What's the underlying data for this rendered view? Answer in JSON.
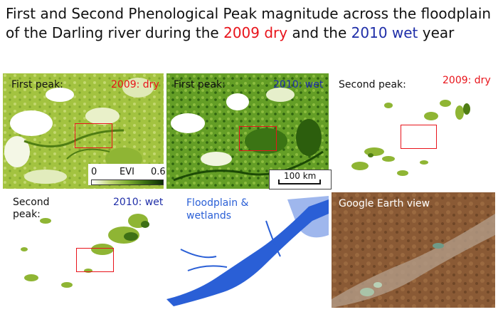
{
  "title": {
    "part1": "First and Second Phenological Peak magnitude across the floodplain of the Darling river during the ",
    "dry_year": "2009 dry",
    "part2": " and the ",
    "wet_year": "2010 wet",
    "part3": " year"
  },
  "panels": {
    "p1": {
      "label": "First peak:",
      "year": "2009: dry"
    },
    "p2": {
      "label": "First peak:",
      "year": "2010: wet"
    },
    "p3": {
      "label": "Second peak:",
      "year": "2009: dry"
    },
    "p4": {
      "label": "Second peak:",
      "year": "2010: wet"
    },
    "p5": {
      "label": "Floodplain & wetlands"
    },
    "p6": {
      "label": "Google Earth view"
    }
  },
  "colorbar": {
    "min": "0",
    "name": "EVI",
    "max": "0.6"
  },
  "scalebar": {
    "text": "100 km"
  },
  "colors": {
    "dry": "#e8141b",
    "wet": "#1f2ea8",
    "floodplain": "#2a5fd6",
    "vegetation": "#7fae33"
  }
}
